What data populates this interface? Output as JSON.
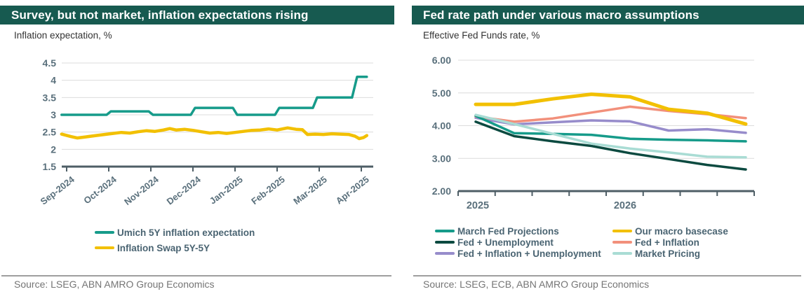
{
  "colors": {
    "title_bg": "#175A50",
    "title_text": "#FFFFFF",
    "axis_text": "#5A707C",
    "axis_line": "#4E5E66",
    "gridline": "#DCDCDC",
    "legend_text": "#4A6472",
    "subtitle_text": "#333333",
    "source_text": "#757575",
    "teal": "#169B8A",
    "dark_green": "#0C4A40",
    "yellow": "#F2C000",
    "salmon": "#F2907B",
    "purple": "#978CCB",
    "mint": "#A9DCD4"
  },
  "left_panel": {
    "title": "Survey, but not market, inflation expectations rising",
    "subtitle": "Inflation expectation, %",
    "source": "Source: LSEG, ABN AMRO Group Economics"
  },
  "right_panel": {
    "title": "Fed rate path under various macro assumptions",
    "subtitle": "Effective Fed Funds rate, %",
    "source": "Source:  LSEG, ECB, ABN AMRO Group Economics"
  },
  "chart_data": [
    {
      "type": "line",
      "title": "Survey, but not market, inflation expectations rising",
      "ylabel": "Inflation expectation, %",
      "ylim": [
        1.5,
        4.5
      ],
      "yticks": [
        1.5,
        2,
        2.5,
        3,
        3.5,
        4,
        4.5
      ],
      "ytick_labels": [
        "1.5",
        "2",
        "2.5",
        "3",
        "3.5",
        "4",
        "4.5"
      ],
      "x_tick_labels": [
        "Sep-2024",
        "Oct-2024",
        "Nov-2024",
        "Dec-2024",
        "Jan-2025",
        "Feb-2025",
        "Mar-2025",
        "Apr-2025"
      ],
      "grid": true,
      "legend_position": "bottom",
      "series": [
        {
          "name": "Umich 5Y inflation expectation",
          "color": "#169B8A",
          "x": [
            -0.12,
            0.95,
            1.05,
            1.95,
            2.05,
            2.95,
            3.05,
            3.95,
            4.05,
            4.95,
            5.05,
            5.85,
            5.95,
            6.78,
            6.9,
            7.13
          ],
          "y": [
            3.0,
            3.0,
            3.1,
            3.1,
            3.0,
            3.0,
            3.2,
            3.2,
            3.0,
            3.0,
            3.2,
            3.2,
            3.5,
            3.5,
            4.1,
            4.1
          ]
        },
        {
          "name": "Inflation Swap 5Y-5Y",
          "color": "#F2C000",
          "x": [
            -0.12,
            0.1,
            0.25,
            0.45,
            0.7,
            0.9,
            1.1,
            1.3,
            1.5,
            1.7,
            1.9,
            2.1,
            2.3,
            2.45,
            2.6,
            2.8,
            3.0,
            3.2,
            3.4,
            3.6,
            3.8,
            4.0,
            4.2,
            4.4,
            4.6,
            4.8,
            5.0,
            5.25,
            5.45,
            5.6,
            5.72,
            5.9,
            6.1,
            6.3,
            6.5,
            6.7,
            6.85,
            6.95,
            7.05,
            7.13
          ],
          "y": [
            2.44,
            2.37,
            2.33,
            2.36,
            2.4,
            2.43,
            2.46,
            2.49,
            2.47,
            2.51,
            2.54,
            2.52,
            2.56,
            2.6,
            2.56,
            2.58,
            2.55,
            2.51,
            2.47,
            2.49,
            2.46,
            2.49,
            2.52,
            2.55,
            2.56,
            2.59,
            2.56,
            2.62,
            2.58,
            2.57,
            2.43,
            2.44,
            2.43,
            2.45,
            2.44,
            2.43,
            2.38,
            2.31,
            2.34,
            2.4
          ]
        }
      ]
    },
    {
      "type": "line",
      "title": "Fed rate path under various macro assumptions",
      "ylabel": "Effective Fed Funds rate, %",
      "ylim": [
        2.0,
        6.0
      ],
      "yticks": [
        2,
        3,
        4,
        5,
        6
      ],
      "ytick_labels": [
        "2.00",
        "3.00",
        "4.00",
        "5.00",
        "6.00"
      ],
      "categories": [
        "2025 Q1",
        "2025 Q2",
        "2025 Q3",
        "2025 Q4",
        "2026 Q1",
        "2026 Q2",
        "2026 Q3",
        "2026 Q4"
      ],
      "x_tick_labels": [
        "2025",
        "2026"
      ],
      "grid": true,
      "legend_position": "bottom",
      "series": [
        {
          "name": "March Fed Projections",
          "color": "#169B8A",
          "values": [
            4.3,
            3.77,
            3.75,
            3.72,
            3.6,
            3.57,
            3.55,
            3.52
          ]
        },
        {
          "name": "Fed + Unemployment",
          "color": "#0C4A40",
          "values": [
            4.12,
            3.68,
            3.52,
            3.38,
            3.16,
            2.98,
            2.8,
            2.66
          ]
        },
        {
          "name": "Fed + Inflation + Unemployment",
          "color": "#978CCB",
          "values": [
            4.24,
            4.04,
            4.1,
            4.16,
            4.13,
            3.85,
            3.89,
            3.78
          ]
        },
        {
          "name": "Our macro basecase",
          "color": "#F2C000",
          "values": [
            4.65,
            4.65,
            4.82,
            4.96,
            4.88,
            4.5,
            4.38,
            4.05
          ]
        },
        {
          "name": "Fed + Inflation",
          "color": "#F2907B",
          "values": [
            4.28,
            4.12,
            4.22,
            4.4,
            4.58,
            4.45,
            4.35,
            4.23
          ]
        },
        {
          "name": "Market Pricing",
          "color": "#A9DCD4",
          "values": [
            4.33,
            4.05,
            3.75,
            3.45,
            3.3,
            3.18,
            3.05,
            3.03
          ]
        }
      ],
      "legend_columns": [
        [
          "March Fed Projections",
          "Fed + Unemployment",
          "Fed + Inflation + Unemployment"
        ],
        [
          "Our macro basecase",
          "Fed + Inflation",
          "Market Pricing"
        ]
      ]
    }
  ]
}
